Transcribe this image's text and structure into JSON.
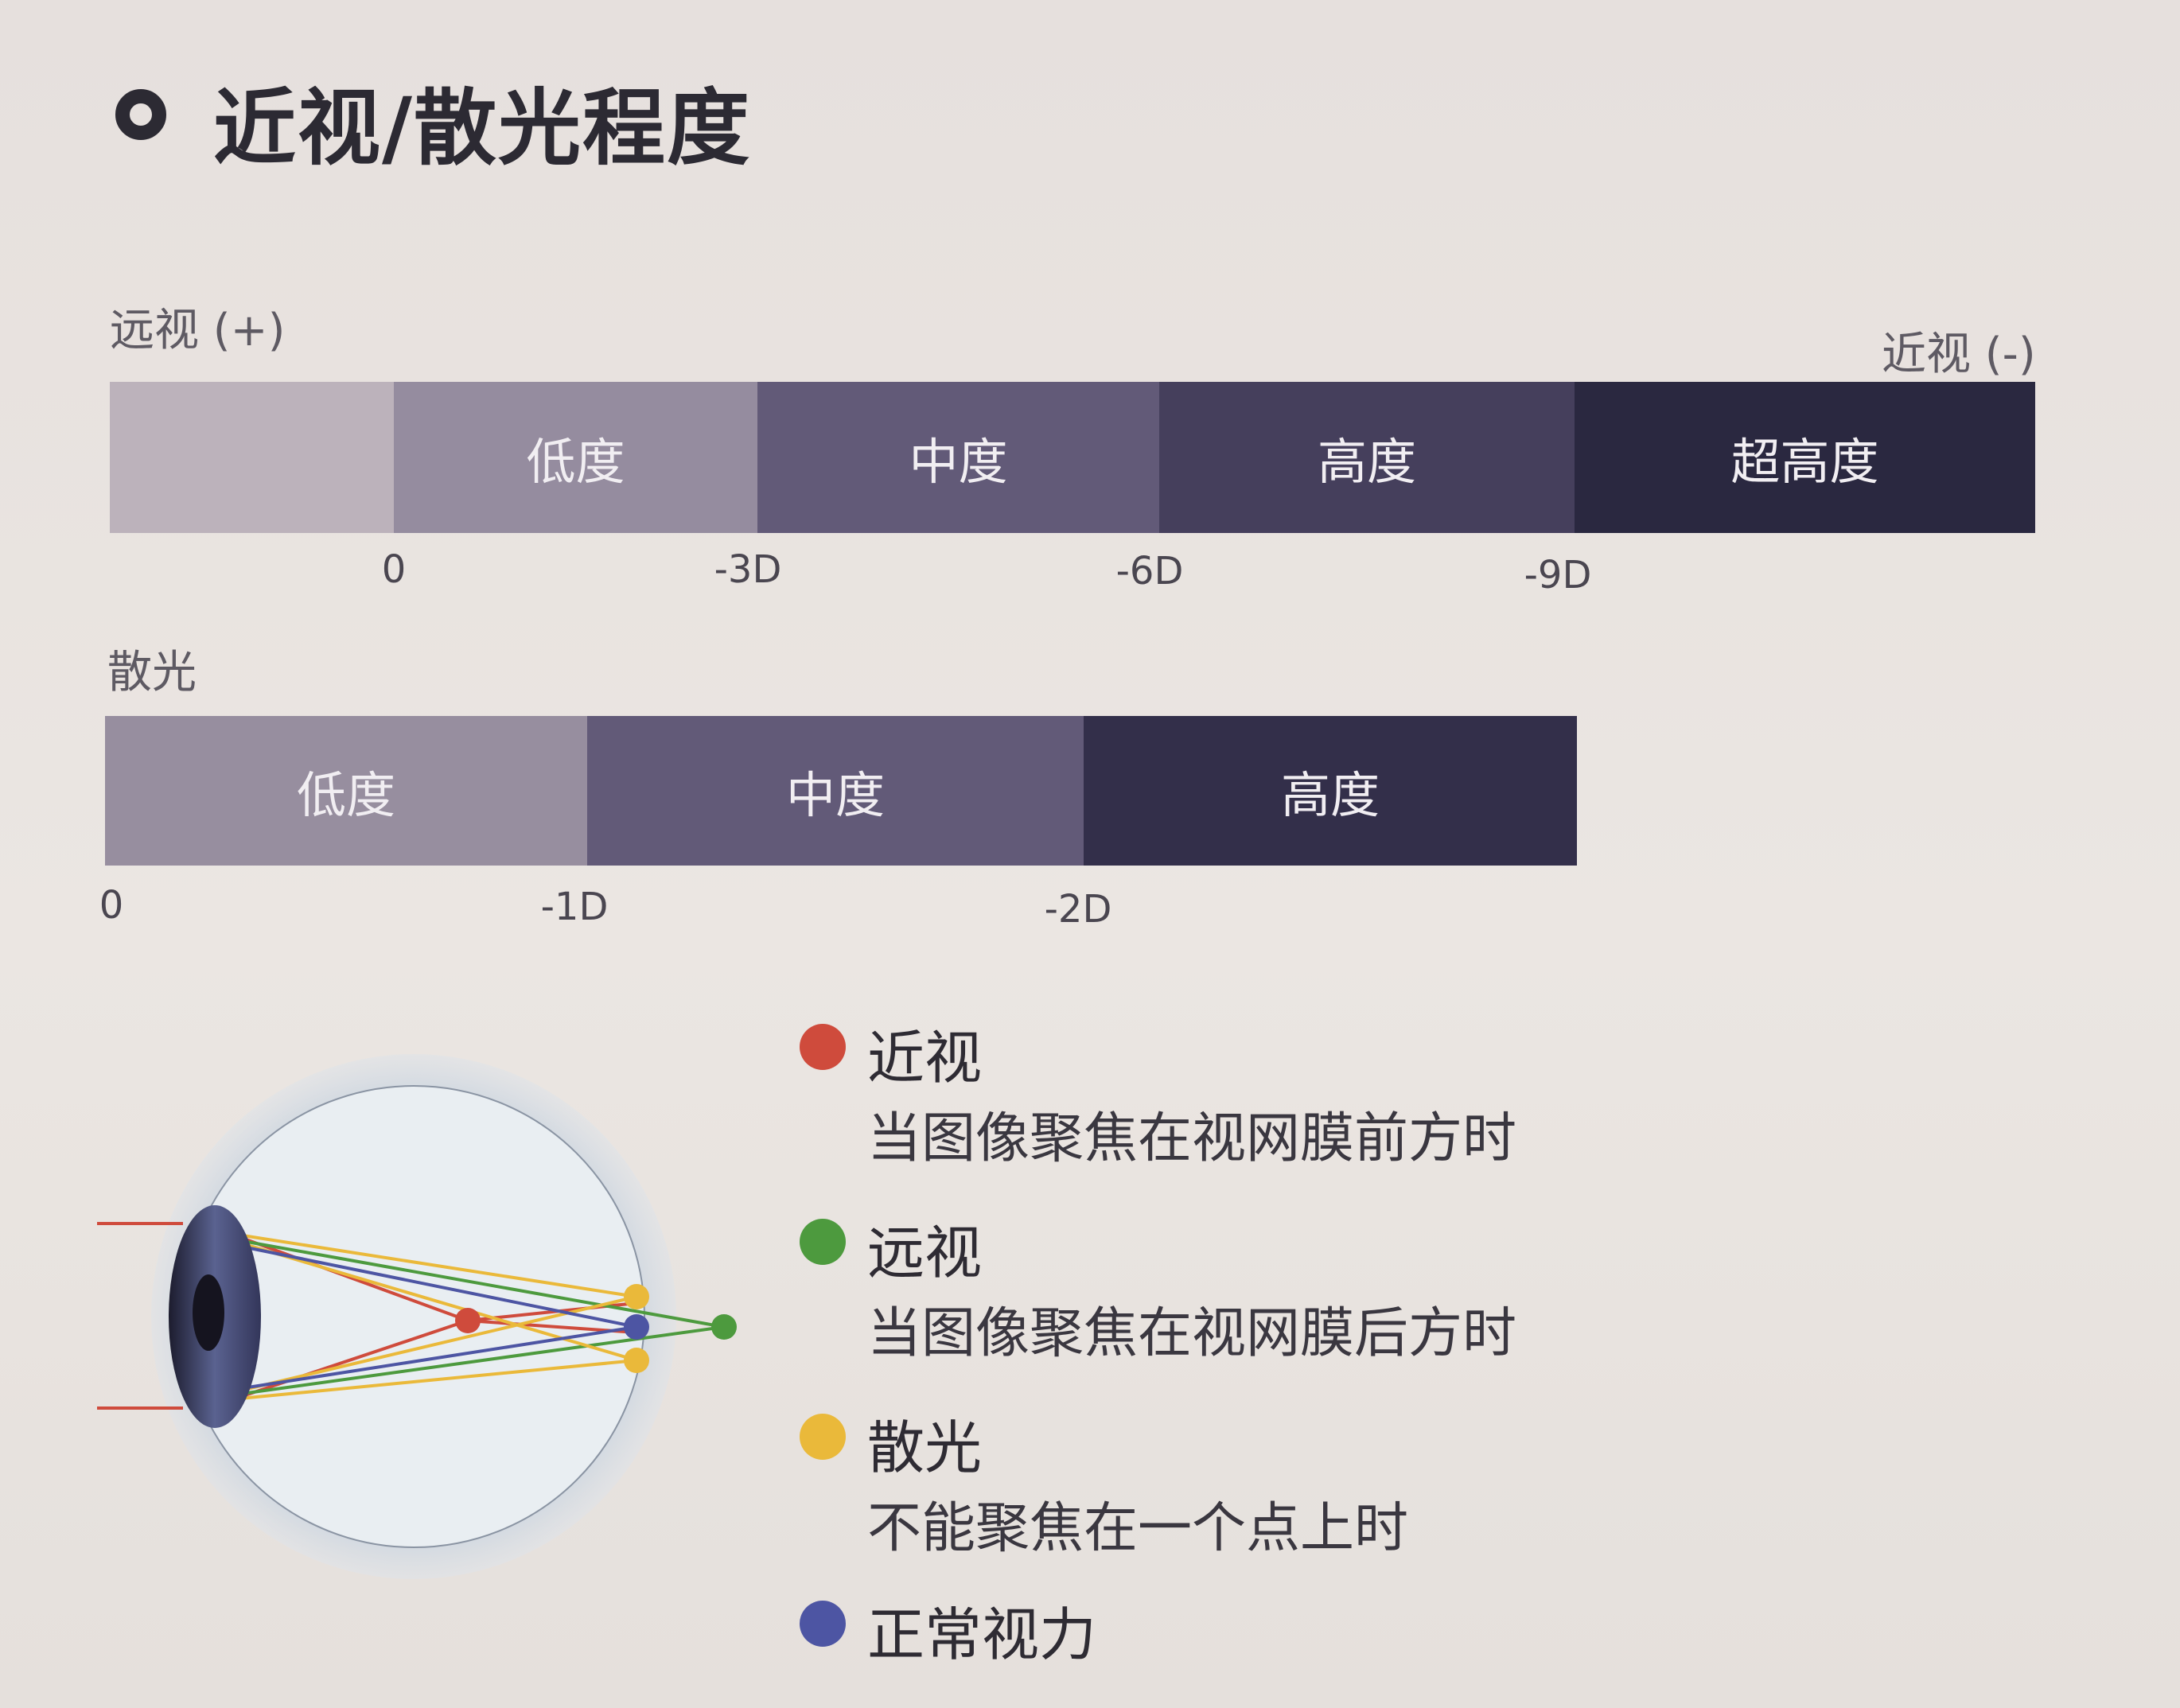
{
  "title": "近视/散光程度",
  "myopia": {
    "left_label": "远视 (+)",
    "right_label": "近视 (-)",
    "segments": [
      {
        "label": "",
        "color": "#bcb2bb"
      },
      {
        "label": "低度",
        "color": "#958c9f"
      },
      {
        "label": "中度",
        "color": "#625a78"
      },
      {
        "label": "高度",
        "color": "#453f5c"
      },
      {
        "label": "超高度",
        "color": "#2a2840"
      }
    ],
    "ticks": [
      "0",
      "-3D",
      "-6D",
      "-9D"
    ]
  },
  "astigmatism": {
    "label": "散光",
    "segments": [
      {
        "label": "低度",
        "color": "#978e9f"
      },
      {
        "label": "中度",
        "color": "#625a78"
      },
      {
        "label": "高度",
        "color": "#332f4a"
      }
    ],
    "ticks": [
      "0",
      "-1D",
      "-2D"
    ]
  },
  "legend": [
    {
      "title": "近视",
      "desc": "当图像聚焦在视网膜前方时",
      "color": "#cf4b3c",
      "icon": "red-dot-icon"
    },
    {
      "title": "远视",
      "desc": "当图像聚焦在视网膜后方时",
      "color": "#4d9a3e",
      "icon": "green-dot-icon"
    },
    {
      "title": "散光",
      "desc": "不能聚焦在一个点上时",
      "color": "#eab93a",
      "icon": "yellow-dot-icon"
    },
    {
      "title": "正常视力",
      "desc": "",
      "color": "#4d55a3",
      "icon": "blue-dot-icon"
    }
  ]
}
